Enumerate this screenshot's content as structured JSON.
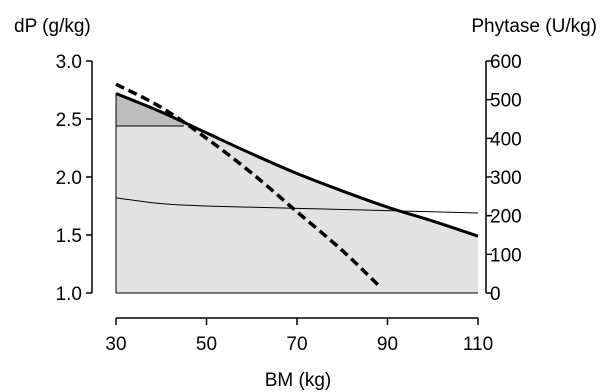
{
  "chart_data": {
    "type": "area",
    "xlabel": "BM (kg)",
    "ylabel_left": "dP (g/kg)",
    "ylabel_right": "Phytase (U/kg)",
    "xlim": [
      30,
      110
    ],
    "ylim_left": [
      1.0,
      3.0
    ],
    "ylim_right": [
      0,
      600
    ],
    "xticks": [
      "30",
      "50",
      "70",
      "90",
      "110"
    ],
    "yticks_left": [
      "1.0",
      "1.5",
      "2.0",
      "2.5",
      "3.0"
    ],
    "yticks_right": [
      "0",
      "100",
      "200",
      "300",
      "400",
      "500",
      "600"
    ],
    "grid": false,
    "series": [
      {
        "axis": "left",
        "style": "thick solid upper boundary",
        "x": [
          30,
          40,
          50,
          60,
          70,
          80,
          90,
          100,
          110
        ],
        "y": [
          2.72,
          2.56,
          2.38,
          2.2,
          2.03,
          1.88,
          1.74,
          1.62,
          1.49
        ]
      },
      {
        "axis": "left",
        "style": "thin solid lower boundary",
        "x": [
          30,
          40,
          50,
          60,
          70,
          80,
          90,
          100,
          110
        ],
        "y": [
          1.82,
          1.77,
          1.75,
          1.74,
          1.73,
          1.72,
          1.71,
          1.7,
          1.69
        ]
      },
      {
        "axis": "left",
        "style": "thin solid horizontal segment",
        "x": [
          30,
          45
        ],
        "y": [
          2.44,
          2.44
        ]
      },
      {
        "axis": "right",
        "style": "dashed",
        "x": [
          30,
          40,
          50,
          60,
          70,
          80,
          88
        ],
        "y": [
          540,
          480,
          400,
          310,
          210,
          110,
          20
        ]
      }
    ],
    "fills": [
      {
        "between": "dP upper boundary and 1.0",
        "color": "#e2e2e2"
      },
      {
        "between": "dP upper boundary and 2.44 for x 30–45",
        "color": "#bdbdbd"
      }
    ]
  }
}
